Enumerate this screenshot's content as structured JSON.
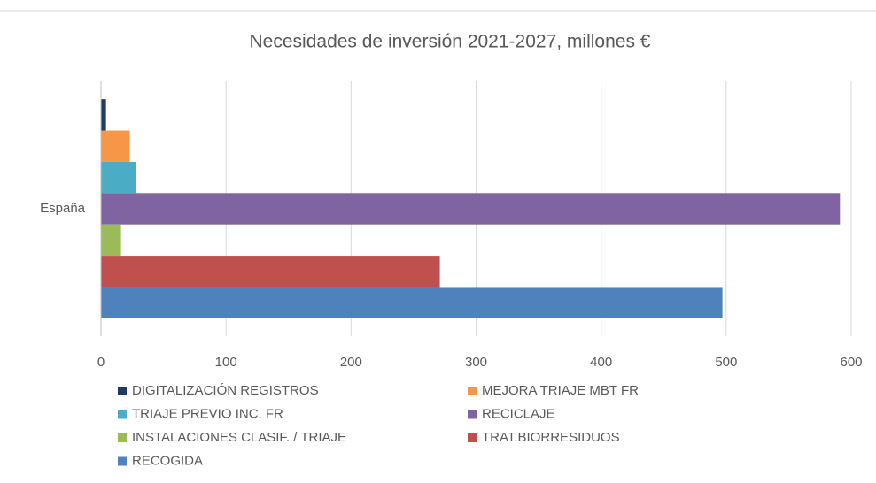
{
  "chart_data": {
    "type": "bar",
    "orientation": "horizontal",
    "title": "Necesidades de inversión 2021-2027, millones €",
    "categories": [
      "España"
    ],
    "series": [
      {
        "name": "DIGITALIZACIÓN REGISTROS",
        "color": "#1f3b5e",
        "values": [
          4
        ]
      },
      {
        "name": "MEJORA TRIAJE MBT FR",
        "color": "#f79646",
        "values": [
          23
        ]
      },
      {
        "name": "TRIAJE PREVIO INC. FR",
        "color": "#4bacc6",
        "values": [
          28
        ]
      },
      {
        "name": "RECICLAJE",
        "color": "#8064a2",
        "values": [
          591
        ]
      },
      {
        "name": "INSTALACIONES CLASIF. / TRIAJE",
        "color": "#9bbb59",
        "values": [
          16
        ]
      },
      {
        "name": "TRAT.BIORRESIDUOS",
        "color": "#c0504d",
        "values": [
          271
        ]
      },
      {
        "name": "RECOGIDA",
        "color": "#4f81bd",
        "values": [
          497
        ]
      }
    ],
    "xlim": [
      0,
      600
    ],
    "xticks": [
      0,
      100,
      200,
      300,
      400,
      500,
      600
    ],
    "grid": true
  }
}
